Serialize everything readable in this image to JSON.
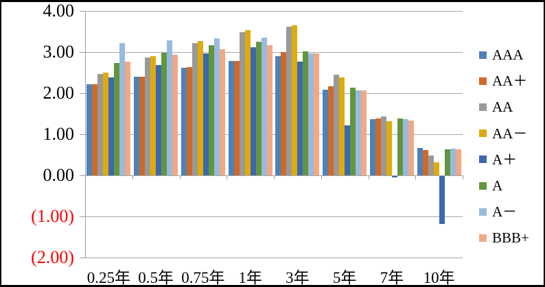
{
  "chart_data": {
    "type": "bar",
    "title": "",
    "xlabel": "",
    "ylabel": "",
    "grid": true,
    "legend_position": "right",
    "ylim": [
      -2,
      4
    ],
    "y_step": 1,
    "y_tick_labels": [
      "4.00",
      "3.00",
      "2.00",
      "1.00",
      "0.00",
      "(1.00)",
      "(2.00)"
    ],
    "y_negative_label_color": "#ff0000",
    "categories": [
      "0.25年",
      "0.5年",
      "0.75年",
      "1年",
      "3年",
      "5年",
      "7年",
      "10年"
    ],
    "series": [
      {
        "name": "AAA",
        "color": "#4d82b8",
        "values": [
          2.21,
          2.4,
          2.61,
          2.78,
          2.9,
          2.08,
          1.37,
          0.67
        ]
      },
      {
        "name": "AA＋",
        "color": "#cd6a29",
        "values": [
          2.21,
          2.4,
          2.64,
          2.79,
          3.0,
          2.16,
          1.39,
          0.62
        ]
      },
      {
        "name": "AA",
        "color": "#9a9998",
        "values": [
          2.47,
          2.87,
          3.22,
          3.48,
          3.61,
          2.45,
          1.44,
          0.48
        ]
      },
      {
        "name": "AA－",
        "color": "#dfab0c",
        "values": [
          2.5,
          2.9,
          3.27,
          3.53,
          3.65,
          2.39,
          1.32,
          0.32
        ]
      },
      {
        "name": "A＋",
        "color": "#3c68ae",
        "values": [
          2.39,
          2.68,
          2.96,
          3.12,
          2.76,
          1.21,
          -0.03,
          -1.16
        ]
      },
      {
        "name": "A",
        "color": "#63953e",
        "values": [
          2.73,
          2.98,
          3.16,
          3.25,
          3.01,
          2.13,
          1.39,
          0.63
        ]
      },
      {
        "name": "A－",
        "color": "#98badd",
        "values": [
          3.21,
          3.28,
          3.33,
          3.35,
          2.96,
          2.07,
          1.36,
          0.65
        ]
      },
      {
        "name": "BBB+",
        "color": "#f1a885",
        "values": [
          2.76,
          2.93,
          3.07,
          3.17,
          2.97,
          2.07,
          1.34,
          0.64
        ]
      }
    ],
    "colors": {
      "gridline": "#a6a6a6",
      "axis": "#9c9c9c",
      "frame_border": "#000000",
      "background": "#ffffff"
    }
  }
}
